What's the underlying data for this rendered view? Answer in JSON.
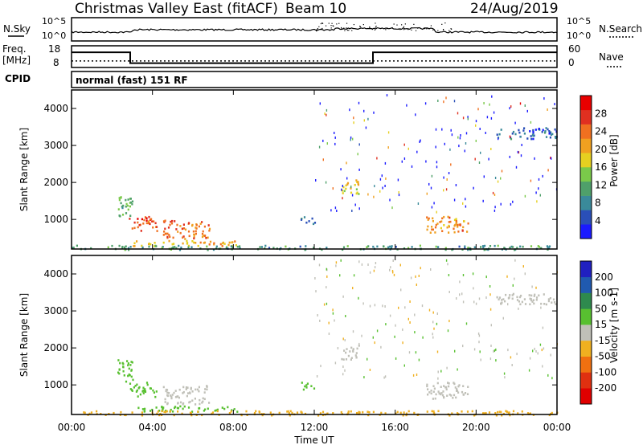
{
  "header": {
    "station": "Christmas Valley East (fitACF)",
    "beam": "Beam 10",
    "date": "24/Aug/2019"
  },
  "noise_panel": {
    "left_label": "N.Sky",
    "right_label": "N.Search",
    "left_ticks": [
      "10^5",
      "10^0"
    ],
    "right_ticks": [
      "10^5",
      "10^0"
    ]
  },
  "freq_panel": {
    "left_label_1": "Freq.",
    "left_label_2": "[MHz]",
    "right_label": "Nave",
    "left_ticks": [
      "18",
      "8"
    ],
    "right_ticks": [
      "60",
      "0"
    ]
  },
  "cpid": {
    "label": "CPID",
    "value": "normal (fast) 151 RF"
  },
  "chart_data": [
    {
      "type": "heatmap",
      "name": "power",
      "ylabel": "Slant Range [km]",
      "yticks": [
        "1000",
        "2000",
        "3000",
        "4000"
      ],
      "ylim": [
        200,
        4500
      ],
      "xlim": [
        0,
        24
      ],
      "colorbar": {
        "label": "Power [dB]",
        "ticks": [
          "4",
          "8",
          "12",
          "16",
          "20",
          "24",
          "28"
        ],
        "colors": [
          "#1a1aff",
          "#2a4fb8",
          "#3a8a9a",
          "#4fa06a",
          "#7ac94a",
          "#e6d020",
          "#f0a020",
          "#f07020",
          "#e03020",
          "#e80000"
        ]
      },
      "regions": [
        {
          "t0": 2.2,
          "t1": 3.0,
          "r0": 1100,
          "r1": 1700,
          "level": 12
        },
        {
          "t0": 2.8,
          "t1": 4.2,
          "r0": 700,
          "r1": 1100,
          "level": 26
        },
        {
          "t0": 4.5,
          "t1": 6.8,
          "r0": 500,
          "r1": 1000,
          "level": 24
        },
        {
          "t0": 3.0,
          "t1": 8.2,
          "r0": 300,
          "r1": 450,
          "level": 20
        },
        {
          "t0": 13.3,
          "t1": 14.2,
          "r0": 1700,
          "r1": 2100,
          "level": 18
        },
        {
          "t0": 17.5,
          "t1": 19.6,
          "r0": 650,
          "r1": 1100,
          "level": 22
        },
        {
          "t0": 21.0,
          "t1": 24.0,
          "r0": 3200,
          "r1": 3500,
          "level": 6
        },
        {
          "t0": 11.3,
          "t1": 12.0,
          "r0": 900,
          "r1": 1100,
          "level": 6
        },
        {
          "t0": 0,
          "t1": 24,
          "r0": 200,
          "r1": 320,
          "level": 10
        }
      ]
    },
    {
      "type": "heatmap",
      "name": "velocity",
      "ylabel": "Slant Range [km]",
      "xlabel": "Time UT",
      "xticks": [
        "00:00",
        "04:00",
        "08:00",
        "12:00",
        "16:00",
        "20:00",
        "00:00"
      ],
      "yticks": [
        "1000",
        "2000",
        "3000",
        "4000"
      ],
      "ylim": [
        200,
        4500
      ],
      "xlim": [
        0,
        24
      ],
      "colorbar": {
        "label": "Velocity [m s-1]",
        "ticks": [
          "200",
          "100",
          "50",
          "15",
          "-15",
          "-50",
          "-100",
          "-200"
        ],
        "colors": [
          "#2020c0",
          "#205ab0",
          "#2e8a4e",
          "#58c030",
          "#c0c0b8",
          "#f0b020",
          "#f07010",
          "#e03010",
          "#e00000"
        ]
      },
      "regions": [
        {
          "t0": 2.2,
          "t1": 3.0,
          "r0": 1100,
          "r1": 1700,
          "level": 30
        },
        {
          "t0": 2.8,
          "t1": 4.2,
          "r0": 700,
          "r1": 1100,
          "level": 30
        },
        {
          "t0": 4.5,
          "t1": 6.8,
          "r0": 500,
          "r1": 1000,
          "level": 0
        },
        {
          "t0": 3.0,
          "t1": 8.2,
          "r0": 300,
          "r1": 450,
          "level": 30
        },
        {
          "t0": 13.3,
          "t1": 14.2,
          "r0": 1700,
          "r1": 2100,
          "level": 0
        },
        {
          "t0": 17.5,
          "t1": 19.6,
          "r0": 650,
          "r1": 1100,
          "level": 0
        },
        {
          "t0": 21.0,
          "t1": 24.0,
          "r0": 3200,
          "r1": 3500,
          "level": 0
        },
        {
          "t0": 11.3,
          "t1": 12.0,
          "r0": 900,
          "r1": 1100,
          "level": 30
        },
        {
          "t0": 0,
          "t1": 24,
          "r0": 200,
          "r1": 320,
          "level": -30
        }
      ]
    }
  ],
  "freq_series": [
    {
      "t0": 0,
      "t1": 2.9,
      "freq_mhz": 15
    },
    {
      "t0": 2.9,
      "t1": 14.9,
      "freq_mhz": 10
    },
    {
      "t0": 14.9,
      "t1": 24,
      "freq_mhz": 15
    }
  ],
  "nave_level": 18
}
